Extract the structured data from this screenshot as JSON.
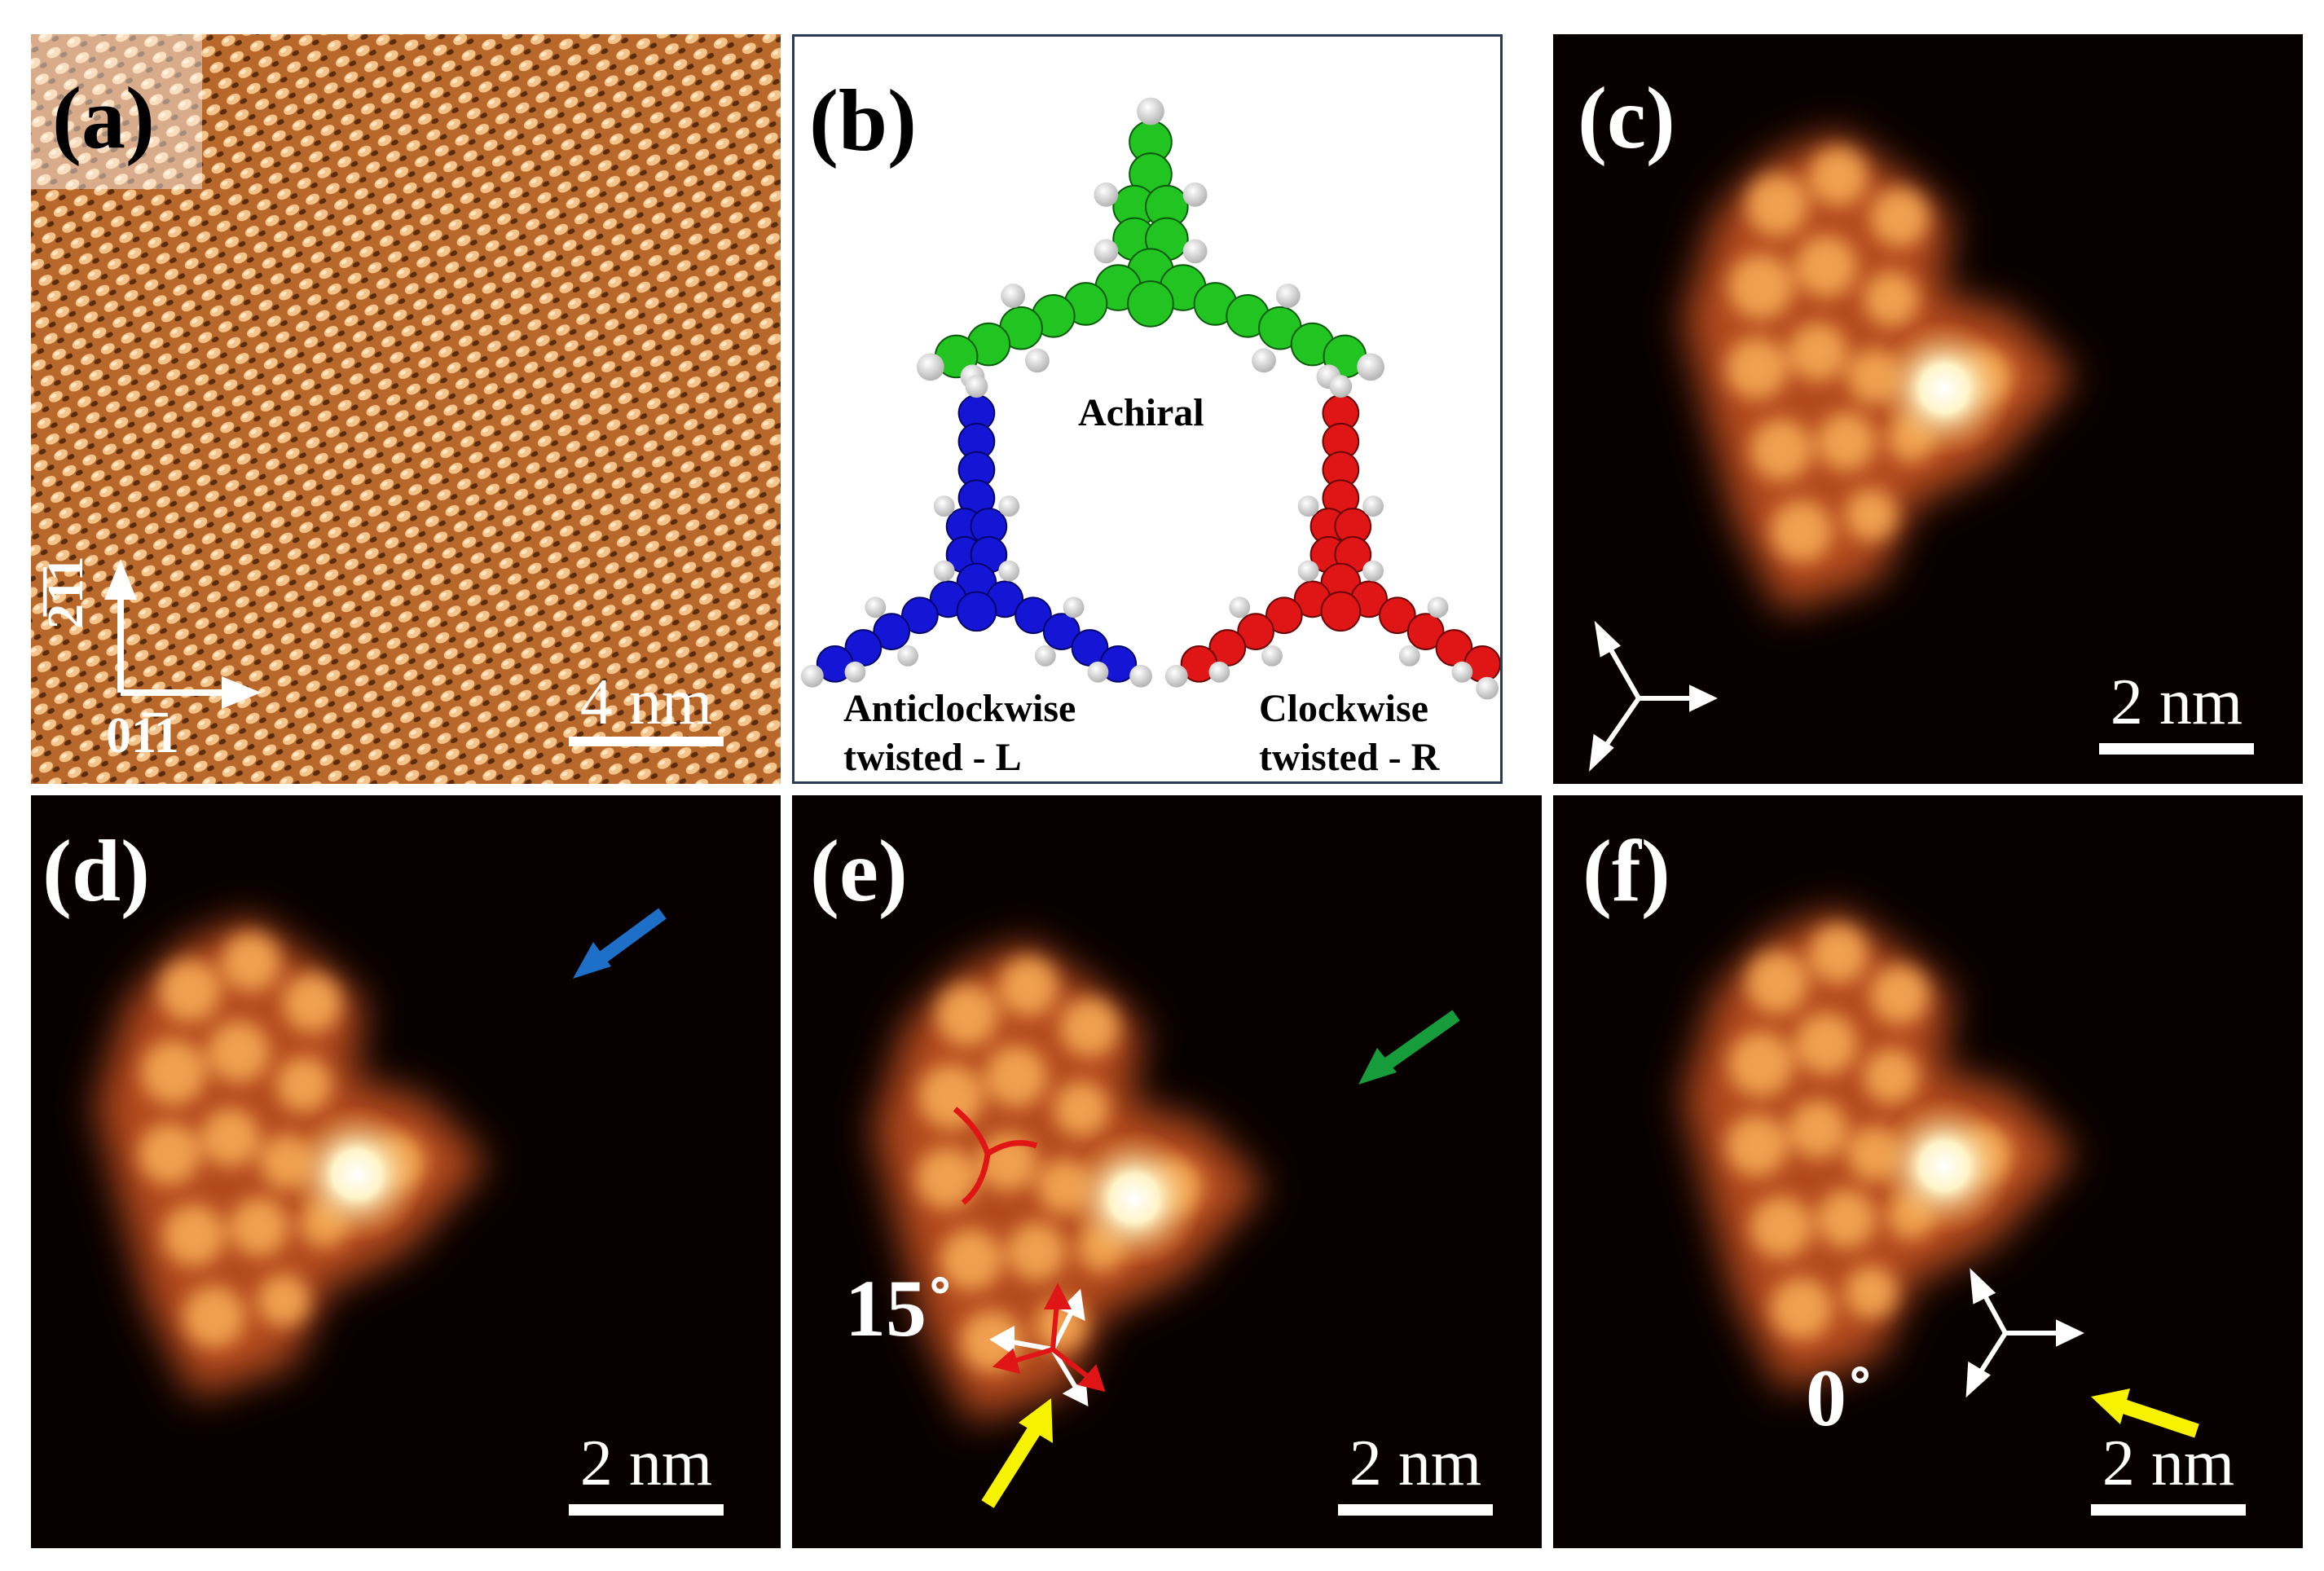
{
  "panels": {
    "a": {
      "label": "(a)",
      "scale": "4 nm",
      "axis_vertical": "2̅1̅1",
      "axis_horizontal": "01̅1"
    },
    "b": {
      "label": "(b)",
      "achiral": "Achiral",
      "left_line1": "Anticlockwise",
      "left_line2": "twisted - L",
      "right_line1": "Clockwise",
      "right_line2": "twisted - R"
    },
    "c": {
      "label": "(c)",
      "scale": "2 nm"
    },
    "d": {
      "label": "(d)",
      "scale": "2 nm"
    },
    "e": {
      "label": "(e)",
      "scale": "2 nm",
      "angle": "15˚"
    },
    "f": {
      "label": "(f)",
      "scale": "2 nm",
      "angle": "0˚"
    }
  },
  "colors": {
    "achiral": "#22c422",
    "left_twisted": "#1515d6",
    "right_twisted": "#e01515",
    "hydrogen": "#e6e6e6",
    "arrow_blue": "#1e6fc8",
    "arrow_green": "#169c3a",
    "arrow_yellow": "#f7f200"
  }
}
